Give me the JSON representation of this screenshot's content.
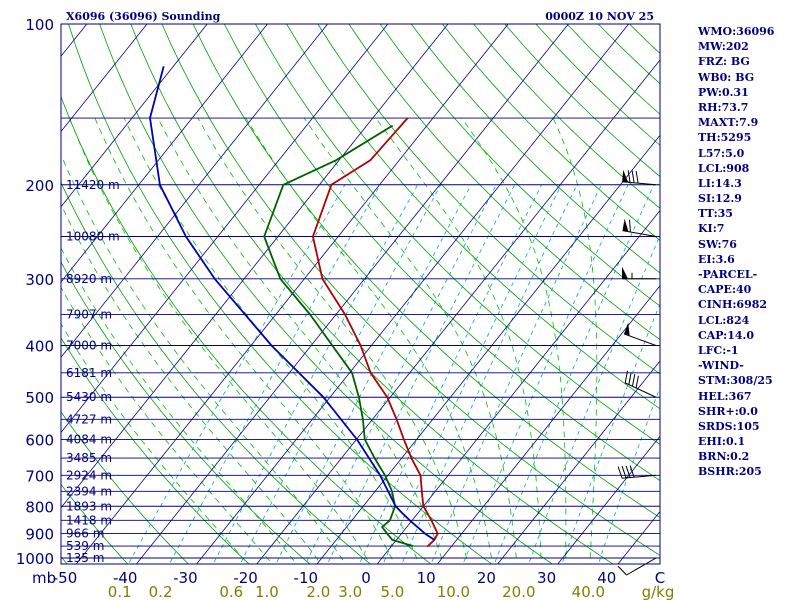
{
  "header": {
    "station_title": "X6096 (36096) Sounding",
    "valid_time": "0000Z 10 NOV 25"
  },
  "chart_data": {
    "type": "line",
    "title": "X6096 (36096) Sounding",
    "subtitle": "0000Z 10 NOV 25",
    "diagram": "skew-T log-P",
    "pressure_range_mb": [
      1000,
      100
    ],
    "temperature_range_c": [
      -50,
      50
    ],
    "pressure_ticks": [
      "100",
      "200",
      "300",
      "400",
      "500",
      "600",
      "700",
      "800",
      "900",
      "1000"
    ],
    "pressure_tick_values": [
      100,
      200,
      300,
      400,
      500,
      600,
      700,
      800,
      900,
      1000
    ],
    "pressure_unit_label": "mb",
    "temperature_ticks": [
      "-50",
      "-40",
      "-30",
      "-20",
      "-10",
      "0",
      "10",
      "20",
      "30",
      "40",
      "C"
    ],
    "temperature_tick_values": [
      -50,
      -40,
      -30,
      -20,
      -10,
      0,
      10,
      20,
      30,
      40
    ],
    "mixing_ratio_ticks": [
      "0.1",
      "0.2",
      "0.6",
      "1.0",
      "2.0",
      "3.0",
      "5.0",
      "10.0",
      "20.0",
      "40.0",
      "g/kg"
    ],
    "mixing_ratio_values": [
      0.1,
      0.2,
      0.6,
      1.0,
      2.0,
      3.0,
      5.0,
      10.0,
      20.0,
      40.0
    ],
    "height_labels": [
      {
        "p": 200,
        "text": "11420 m"
      },
      {
        "p": 250,
        "text": "10080 m"
      },
      {
        "p": 300,
        "text": "8920 m"
      },
      {
        "p": 350,
        "text": "7907 m"
      },
      {
        "p": 400,
        "text": "7000 m"
      },
      {
        "p": 450,
        "text": "6181 m"
      },
      {
        "p": 500,
        "text": "5430 m"
      },
      {
        "p": 550,
        "text": "4727 m"
      },
      {
        "p": 600,
        "text": "4084 m"
      },
      {
        "p": 650,
        "text": "3485 m"
      },
      {
        "p": 700,
        "text": "2924 m"
      },
      {
        "p": 750,
        "text": "2394 m"
      },
      {
        "p": 800,
        "text": "1893 m"
      },
      {
        "p": 850,
        "text": "1418 m"
      },
      {
        "p": 900,
        "text": "966 m"
      },
      {
        "p": 950,
        "text": "539 m"
      },
      {
        "p": 1000,
        "text": "135 m"
      }
    ],
    "series": [
      {
        "name": "Temperature",
        "color": "#b00000",
        "points": [
          {
            "p": 953,
            "t": 6.0
          },
          {
            "p": 925,
            "t": 6.3
          },
          {
            "p": 900,
            "t": 6.0
          },
          {
            "p": 850,
            "t": 3.2
          },
          {
            "p": 800,
            "t": 0.0
          },
          {
            "p": 760,
            "t": -1.8
          },
          {
            "p": 700,
            "t": -4.6
          },
          {
            "p": 650,
            "t": -8.4
          },
          {
            "p": 600,
            "t": -12.1
          },
          {
            "p": 550,
            "t": -16.0
          },
          {
            "p": 500,
            "t": -20.5
          },
          {
            "p": 450,
            "t": -26.5
          },
          {
            "p": 400,
            "t": -31.8
          },
          {
            "p": 350,
            "t": -38.5
          },
          {
            "p": 300,
            "t": -47.0
          },
          {
            "p": 250,
            "t": -54.2
          },
          {
            "p": 200,
            "t": -58.0
          },
          {
            "p": 180,
            "t": -54.8
          },
          {
            "p": 150,
            "t": -54.2
          }
        ]
      },
      {
        "name": "Dew point",
        "color": "#006000",
        "points": [
          {
            "p": 950,
            "t": 3.6
          },
          {
            "p": 925,
            "t": -0.7
          },
          {
            "p": 900,
            "t": -2.4
          },
          {
            "p": 875,
            "t": -4.1
          },
          {
            "p": 850,
            "t": -3.7
          },
          {
            "p": 800,
            "t": -4.7
          },
          {
            "p": 750,
            "t": -7.2
          },
          {
            "p": 700,
            "t": -10.5
          },
          {
            "p": 650,
            "t": -14.5
          },
          {
            "p": 600,
            "t": -18.6
          },
          {
            "p": 550,
            "t": -21.6
          },
          {
            "p": 500,
            "t": -25.2
          },
          {
            "p": 450,
            "t": -29.6
          },
          {
            "p": 400,
            "t": -36.5
          },
          {
            "p": 350,
            "t": -44.3
          },
          {
            "p": 300,
            "t": -54.0
          },
          {
            "p": 250,
            "t": -62.3
          },
          {
            "p": 200,
            "t": -66.0
          },
          {
            "p": 180,
            "t": -60.5
          },
          {
            "p": 155,
            "t": -55.7
          }
        ]
      },
      {
        "name": "Parcel",
        "color": "#0000b0",
        "points": [
          {
            "p": 925,
            "t": 6.3
          },
          {
            "p": 900,
            "t": 3.9
          },
          {
            "p": 850,
            "t": -0.4
          },
          {
            "p": 824,
            "t": -2.6
          },
          {
            "p": 800,
            "t": -4.6
          },
          {
            "p": 700,
            "t": -11.3
          },
          {
            "p": 600,
            "t": -19.9
          },
          {
            "p": 500,
            "t": -31.1
          },
          {
            "p": 400,
            "t": -46.6
          },
          {
            "p": 300,
            "t": -64.9
          },
          {
            "p": 250,
            "t": -75.3
          },
          {
            "p": 200,
            "t": -86.5
          },
          {
            "p": 150,
            "t": -97.0
          },
          {
            "p": 120,
            "t": -101.6
          }
        ]
      }
    ],
    "winds": [
      {
        "p": 200,
        "dir": 275,
        "kt": 80
      },
      {
        "p": 250,
        "dir": 280,
        "kt": 60
      },
      {
        "p": 300,
        "dir": 270,
        "kt": 55
      },
      {
        "p": 400,
        "dir": 290,
        "kt": 50
      },
      {
        "p": 500,
        "dir": 295,
        "kt": 40
      },
      {
        "p": 700,
        "dir": 265,
        "kt": 40
      },
      {
        "p": 1000,
        "dir": 240,
        "kt": 10
      }
    ]
  },
  "indices": [
    "WMO:36096",
    "MW:202",
    "FRZ: BG",
    "WB0: BG",
    "PW:0.31",
    "RH:73.7",
    "MAXT:7.9",
    "TH:5295",
    "L57:5.0",
    "LCL:908",
    "LI:14.3",
    "SI:12.9",
    "TT:35",
    "KI:7",
    "SW:76",
    "EI:3.6",
    "-PARCEL-",
    "CAPE:40",
    "CINH:6982",
    "LCL:824",
    "CAP:14.0",
    "LFC:-1",
    "-WIND-",
    "STM:308/25",
    "HEL:367",
    "SHR+:0.0",
    "SRDS:105",
    "EHI:0.1",
    "BRN:0.2",
    "BSHR:205"
  ],
  "colors": {
    "frame": "#000080",
    "isobar": "#000080",
    "isotherm": "#000080",
    "dry_adiabat": "#00a000",
    "moist_adiabat": "#00c000",
    "mixing_ratio": "#00aaaa",
    "mixing_ratio_labels": "#808000",
    "temperature": "#b00000",
    "dewpoint": "#006000",
    "parcel": "#0000b0",
    "wind_barb": "#000000"
  }
}
